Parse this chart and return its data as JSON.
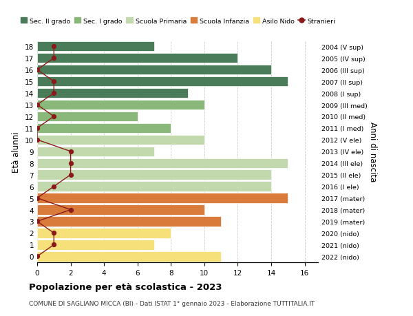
{
  "ages": [
    18,
    17,
    16,
    15,
    14,
    13,
    12,
    11,
    10,
    9,
    8,
    7,
    6,
    5,
    4,
    3,
    2,
    1,
    0
  ],
  "right_labels": [
    "2004 (V sup)",
    "2005 (IV sup)",
    "2006 (III sup)",
    "2007 (II sup)",
    "2008 (I sup)",
    "2009 (III med)",
    "2010 (II med)",
    "2011 (I med)",
    "2012 (V ele)",
    "2013 (IV ele)",
    "2014 (III ele)",
    "2015 (II ele)",
    "2016 (I ele)",
    "2017 (mater)",
    "2018 (mater)",
    "2019 (mater)",
    "2020 (nido)",
    "2021 (nido)",
    "2022 (nido)"
  ],
  "bar_values": [
    7,
    12,
    14,
    15,
    9,
    10,
    6,
    8,
    10,
    7,
    15,
    14,
    14,
    15,
    10,
    11,
    8,
    7,
    11
  ],
  "bar_colors": [
    "#4a7c59",
    "#4a7c59",
    "#4a7c59",
    "#4a7c59",
    "#4a7c59",
    "#8ab87a",
    "#8ab87a",
    "#8ab87a",
    "#c2d9ae",
    "#c2d9ae",
    "#c2d9ae",
    "#c2d9ae",
    "#c2d9ae",
    "#d97b3a",
    "#d97b3a",
    "#d97b3a",
    "#f5e07a",
    "#f5e07a",
    "#f5e07a"
  ],
  "stranieri_values": [
    1,
    1,
    0,
    1,
    1,
    0,
    1,
    0,
    0,
    2,
    2,
    2,
    1,
    0,
    2,
    0,
    1,
    1,
    0
  ],
  "stranieri_color": "#8b1a1a",
  "legend_items": [
    {
      "label": "Sec. II grado",
      "color": "#4a7c59"
    },
    {
      "label": "Sec. I grado",
      "color": "#8ab87a"
    },
    {
      "label": "Scuola Primaria",
      "color": "#c2d9ae"
    },
    {
      "label": "Scuola Infanzia",
      "color": "#d97b3a"
    },
    {
      "label": "Asilo Nido",
      "color": "#f5e07a"
    },
    {
      "label": "Stranieri",
      "color": "#8b1a1a"
    }
  ],
  "xlabel_vals": [
    0,
    2,
    4,
    6,
    8,
    10,
    12,
    14,
    16
  ],
  "xlim": [
    0,
    16.8
  ],
  "ylim": [
    -0.5,
    18.5
  ],
  "ylabel": "Età alunni",
  "ylabel_right": "Anni di nascita",
  "title": "Popolazione per età scolastica - 2023",
  "subtitle": "COMUNE DI SAGLIANO MICCA (BI) - Dati ISTAT 1° gennaio 2023 - Elaborazione TUTTITALIA.IT",
  "bg_color": "#ffffff",
  "bar_height": 0.85,
  "grid_color": "#cccccc"
}
